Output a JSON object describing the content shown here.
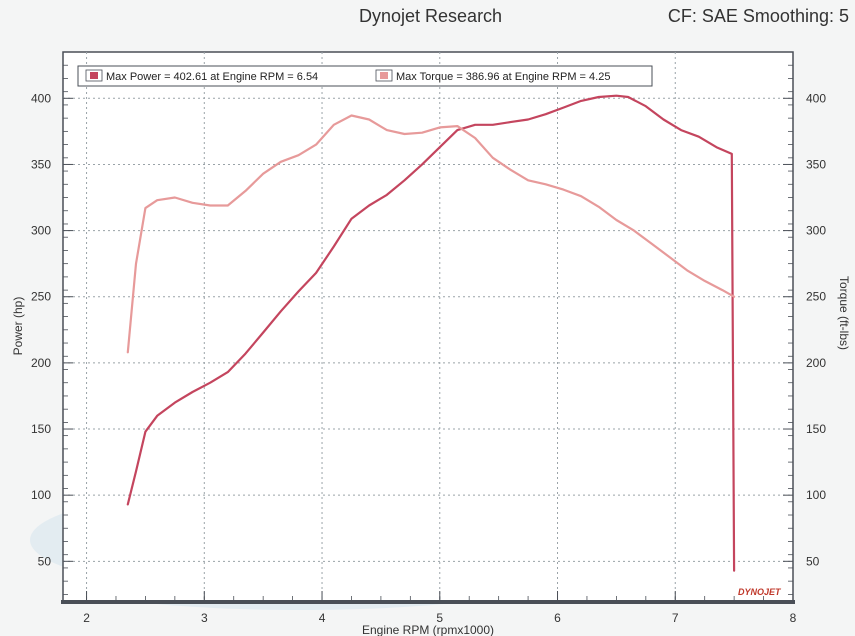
{
  "header": {
    "title": "Dynojet Research",
    "settings": "CF: SAE Smoothing: 5"
  },
  "logo": {
    "text": "DYNOJET"
  },
  "colors": {
    "power": "#c4455e",
    "torque": "#e79a9a",
    "grid": "#9aa3a8",
    "frame": "#4a4f57",
    "plot_bg": "#ffffff",
    "stain": "#cfe3ee"
  },
  "chart_data": {
    "type": "line",
    "title": "Dynojet Research",
    "subtitle": "CF: SAE Smoothing: 5",
    "xlabel": "Engine RPM (rpmx1000)",
    "ylabel": "Power (hp)",
    "y2label": "Torque (ft-lbs)",
    "xlim": [
      1.8,
      8.0
    ],
    "ylim": [
      20,
      435
    ],
    "y2lim": [
      20,
      435
    ],
    "xticks": [
      2,
      3,
      4,
      5,
      6,
      7,
      8
    ],
    "yticks": [
      50,
      100,
      150,
      200,
      250,
      300,
      350,
      400
    ],
    "y2ticks": [
      50,
      100,
      150,
      200,
      250,
      300,
      350,
      400
    ],
    "grid": true,
    "legend_position": "top-left",
    "legend": [
      "Max Power = 402.61 at Engine RPM = 6.54",
      "Max Torque = 386.96 at Engine RPM = 4.25"
    ],
    "series": [
      {
        "name": "Power",
        "axis": "left",
        "x": [
          2.35,
          2.42,
          2.5,
          2.6,
          2.75,
          2.9,
          3.05,
          3.2,
          3.35,
          3.5,
          3.65,
          3.8,
          3.95,
          4.1,
          4.25,
          4.4,
          4.55,
          4.7,
          4.85,
          5.0,
          5.15,
          5.3,
          5.45,
          5.6,
          5.75,
          5.9,
          6.05,
          6.2,
          6.35,
          6.5,
          6.6,
          6.75,
          6.9,
          7.05,
          7.2,
          7.35,
          7.48,
          7.5
        ],
        "y": [
          93,
          118,
          148,
          160,
          170,
          178,
          185,
          193,
          207,
          223,
          239,
          254,
          268,
          288,
          309,
          319,
          327,
          338,
          350,
          363,
          376,
          380,
          380,
          382,
          384,
          388,
          393,
          398,
          401,
          402,
          401,
          394,
          384,
          376,
          371,
          363,
          358,
          43
        ]
      },
      {
        "name": "Torque",
        "axis": "right",
        "x": [
          2.35,
          2.42,
          2.5,
          2.6,
          2.75,
          2.9,
          3.05,
          3.2,
          3.35,
          3.5,
          3.65,
          3.8,
          3.95,
          4.1,
          4.25,
          4.4,
          4.55,
          4.7,
          4.85,
          5.0,
          5.15,
          5.3,
          5.45,
          5.6,
          5.75,
          5.9,
          6.05,
          6.2,
          6.35,
          6.5,
          6.65,
          6.8,
          6.95,
          7.1,
          7.25,
          7.4,
          7.5
        ],
        "y": [
          208,
          275,
          317,
          323,
          325,
          321,
          319,
          319,
          330,
          343,
          352,
          357,
          365,
          380,
          387,
          384,
          376,
          373,
          374,
          378,
          379,
          370,
          355,
          346,
          338,
          335,
          331,
          326,
          318,
          308,
          300,
          290,
          280,
          270,
          262,
          255,
          250
        ]
      }
    ]
  }
}
